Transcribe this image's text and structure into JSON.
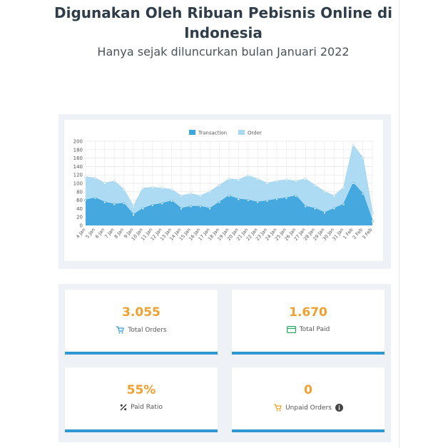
{
  "header": {
    "title": "Digunakan Oleh Ribuan Pebisnis Online di Indonesia",
    "subtitle": "Hanya sejak diluncurkan bulan Januari 2022"
  },
  "chart_data": {
    "type": "area",
    "categories": [
      "4 Jan",
      "5 Jan",
      "6 Jan",
      "7 Jan",
      "8 Jan",
      "9 Jan",
      "10 Jan",
      "11 Jan",
      "12 Jan",
      "13 Jan",
      "14 Jan",
      "15 Jan",
      "16 Jan",
      "17 Jan",
      "18 Jan",
      "19 Jan",
      "20 Jan",
      "21 Jan",
      "22 Jan",
      "23 Jan",
      "24 Jan",
      "25 Jan",
      "26 Jan",
      "27 Jan",
      "28 Jan",
      "29 Jan",
      "30 Jan",
      "31 Jan",
      "1 Feb",
      "2 Feb",
      "3 Feb"
    ],
    "series": [
      {
        "name": "Transaction",
        "color": "#3fa7dd",
        "values": [
          60,
          65,
          55,
          50,
          52,
          25,
          40,
          48,
          52,
          58,
          40,
          45,
          45,
          40,
          55,
          70,
          62,
          60,
          55,
          58,
          62,
          65,
          70,
          45,
          40,
          30,
          40,
          50,
          100,
          75,
          10
        ]
      },
      {
        "name": "Order",
        "color": "#a9d9f2",
        "values": [
          115,
          112,
          100,
          105,
          85,
          45,
          88,
          90,
          88,
          85,
          70,
          75,
          70,
          80,
          95,
          110,
          108,
          118,
          110,
          100,
          105,
          108,
          105,
          110,
          95,
          80,
          70,
          90,
          190,
          160,
          30
        ]
      }
    ],
    "ylim": [
      0,
      200
    ],
    "yticks": [
      0,
      20,
      40,
      60,
      80,
      100,
      120,
      140,
      160,
      180,
      200
    ],
    "grid": true,
    "legend": "top"
  },
  "cards": [
    {
      "value": "3.055",
      "label": "Total Orders"
    },
    {
      "value": "1.670",
      "label": "Total Paid"
    },
    {
      "value": "55%",
      "label": "Paid Ratio"
    },
    {
      "value": "0",
      "label": "Unpaid Orders"
    }
  ]
}
